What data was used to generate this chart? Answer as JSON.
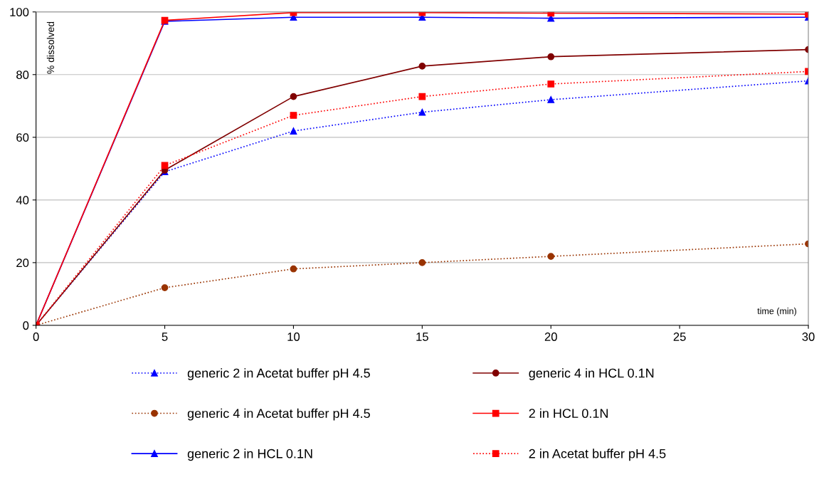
{
  "chart_data": {
    "type": "line",
    "xlabel": "time (min)",
    "ylabel": "% dissolved",
    "x": [
      0,
      5,
      10,
      15,
      20,
      30
    ],
    "xlim": [
      0,
      30
    ],
    "xticks": [
      0,
      5,
      10,
      15,
      20,
      25,
      30
    ],
    "ylim": [
      0,
      100
    ],
    "yticks": [
      0,
      20,
      40,
      60,
      80,
      100
    ],
    "grid": "y",
    "legend": "bottom",
    "series": [
      {
        "name": "generic 2 in Acetat buffer pH 4.5",
        "color": "#0000ff",
        "marker": "triangle",
        "line_style": "dotted",
        "values": [
          0,
          49,
          62,
          68,
          72,
          78
        ]
      },
      {
        "name": "generic 4 in Acetat buffer pH 4.5",
        "color": "#993300",
        "marker": "circle",
        "line_style": "dotted",
        "values": [
          0,
          12,
          18,
          20,
          22,
          26
        ]
      },
      {
        "name": "generic 2 in HCL 0.1N",
        "color": "#0000ff",
        "marker": "triangle",
        "line_style": "solid",
        "values": [
          0,
          97,
          98.3,
          98.3,
          98,
          98.3
        ]
      },
      {
        "name": "generic 4 in HCL 0.1N",
        "color": "#800000",
        "marker": "circle",
        "line_style": "solid",
        "values": [
          0,
          49.5,
          73,
          82.7,
          85.7,
          88
        ]
      },
      {
        "name": "2 in HCL 0.1N",
        "color": "#ff0000",
        "marker": "square",
        "line_style": "solid",
        "values": [
          0,
          97.3,
          99.8,
          99.8,
          99.6,
          99.3
        ]
      },
      {
        "name": "2 in Acetat buffer pH 4.5",
        "color": "#ff0000",
        "marker": "square",
        "line_style": "dotted",
        "values": [
          0,
          51,
          67,
          73,
          77,
          81
        ]
      }
    ]
  }
}
